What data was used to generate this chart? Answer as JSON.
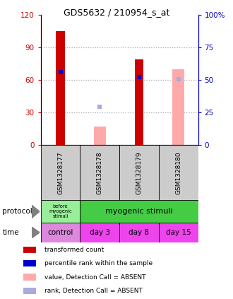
{
  "title": "GDS5632 / 210954_s_at",
  "samples": [
    "GSM1328177",
    "GSM1328178",
    "GSM1328179",
    "GSM1328180"
  ],
  "x_positions": [
    0,
    1,
    2,
    3
  ],
  "red_values": [
    105,
    null,
    79,
    null
  ],
  "pink_values": [
    null,
    17,
    null,
    70
  ],
  "blue_rank_values": [
    67,
    null,
    63,
    null
  ],
  "light_blue_rank_values": [
    null,
    35,
    null,
    61
  ],
  "ylim_left": [
    0,
    120
  ],
  "ylim_right": [
    0,
    100
  ],
  "yticks_left": [
    0,
    30,
    60,
    90,
    120
  ],
  "yticks_right": [
    0,
    25,
    50,
    75,
    100
  ],
  "ytick_labels_left": [
    "0",
    "30",
    "60",
    "90",
    "120"
  ],
  "ytick_labels_right": [
    "0",
    "25",
    "50",
    "75",
    "100%"
  ],
  "time_labels": [
    "control",
    "day 3",
    "day 8",
    "day 15"
  ],
  "legend_items": [
    {
      "color": "#cc0000",
      "label": "transformed count"
    },
    {
      "color": "#0000cc",
      "label": "percentile rank within the sample"
    },
    {
      "color": "#ffaaaa",
      "label": "value, Detection Call = ABSENT"
    },
    {
      "color": "#aaaadd",
      "label": "rank, Detection Call = ABSENT"
    }
  ],
  "red_color": "#cc0000",
  "pink_color": "#ffaaaa",
  "blue_color": "#0000cc",
  "light_blue_color": "#aaaadd",
  "grid_color": "#aaaaaa",
  "sample_bg_color": "#cccccc",
  "left_axis_color": "#cc0000",
  "right_axis_color": "#0000cc",
  "proto_before_color": "#99ee99",
  "proto_after_color": "#44cc44",
  "time_control_color": "#dd88dd",
  "time_day_color": "#ee44ee"
}
